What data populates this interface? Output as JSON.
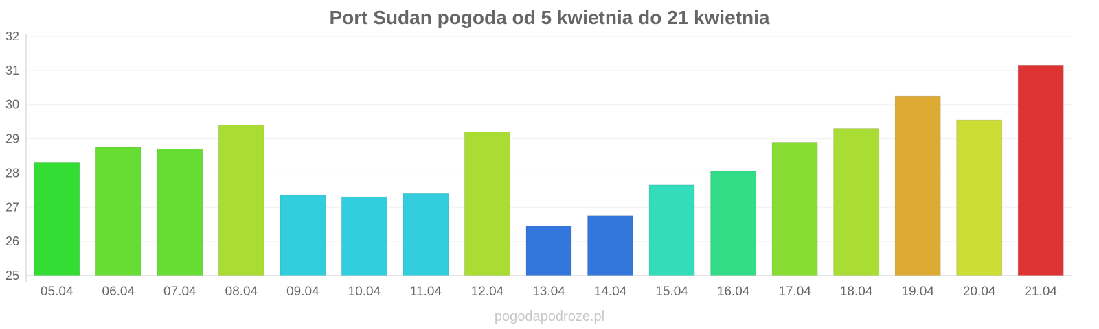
{
  "chart_data": {
    "type": "bar",
    "title": "Port Sudan pogoda od 5 kwietnia do 21 kwietnia",
    "xlabel": "",
    "ylabel": "",
    "ylim": [
      25,
      32
    ],
    "yticks": [
      "25",
      "26",
      "27",
      "28",
      "29",
      "30",
      "31",
      "32"
    ],
    "grid": true,
    "categories": [
      "05.04",
      "06.04",
      "07.04",
      "08.04",
      "09.04",
      "10.04",
      "11.04",
      "12.04",
      "13.04",
      "14.04",
      "15.04",
      "16.04",
      "17.04",
      "18.04",
      "19.04",
      "20.04",
      "21.04"
    ],
    "values": [
      28.3,
      28.75,
      28.7,
      29.4,
      27.35,
      27.3,
      27.4,
      29.2,
      26.45,
      26.75,
      27.65,
      28.05,
      28.9,
      29.3,
      30.25,
      29.55,
      31.15
    ],
    "colors": [
      "#33dd33",
      "#66dd33",
      "#66dd33",
      "#aadd33",
      "#33cedd",
      "#33cedd",
      "#33cedd",
      "#aadd33",
      "#3377dd",
      "#3377dd",
      "#33ddbb",
      "#33dd88",
      "#88dd33",
      "#aadd33",
      "#ddaa33",
      "#ccdd33",
      "#dd3333"
    ]
  },
  "watermark": "pogodapodroze.pl"
}
